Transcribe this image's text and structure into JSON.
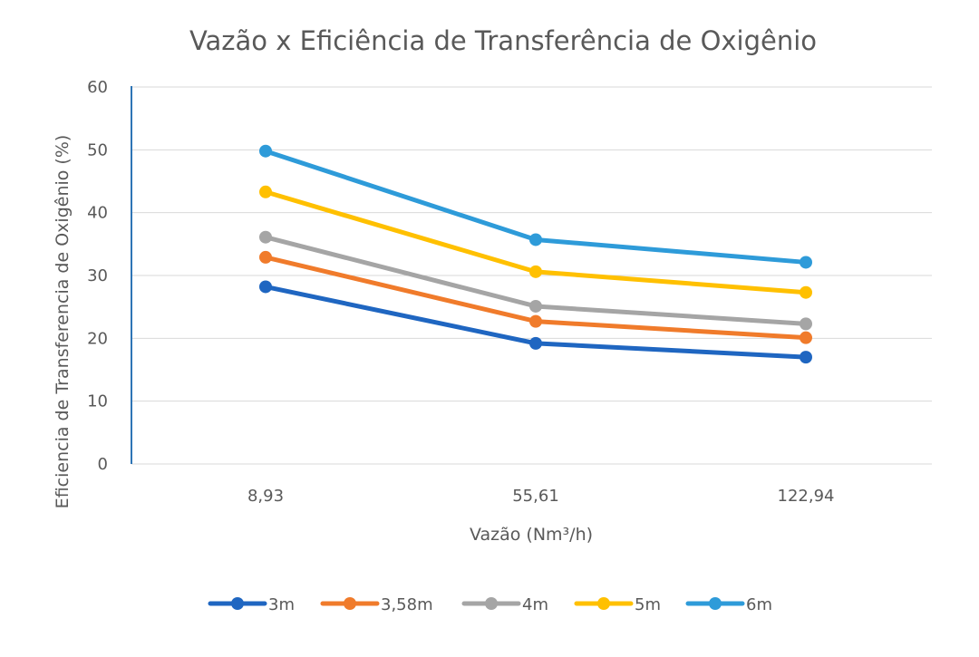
{
  "chart_data": {
    "type": "line",
    "title": "Vazão x Eficiência de Transferência de Oxigênio",
    "xlabel": "Vazão (Nm³/h)",
    "ylabel": "Eficiencia de Transferencia de Oxigênio (%)",
    "categories": [
      "8,93",
      "55,61",
      "122,94"
    ],
    "ylim": [
      0,
      60
    ],
    "yticks": [
      0,
      10,
      20,
      30,
      40,
      50,
      60
    ],
    "grid": true,
    "legend": "bottom",
    "series": [
      {
        "name": "3m",
        "color": "#1f66c1",
        "values": [
          28.2,
          19.2,
          17.0
        ]
      },
      {
        "name": "3,58m",
        "color": "#f07b2b",
        "values": [
          32.9,
          22.7,
          20.1
        ]
      },
      {
        "name": "4m",
        "color": "#a5a5a5",
        "values": [
          36.1,
          25.1,
          22.3
        ]
      },
      {
        "name": "5m",
        "color": "#ffc000",
        "values": [
          43.3,
          30.6,
          27.3
        ]
      },
      {
        "name": "6m",
        "color": "#2e9bd9",
        "values": [
          49.8,
          35.7,
          32.1
        ]
      }
    ]
  }
}
